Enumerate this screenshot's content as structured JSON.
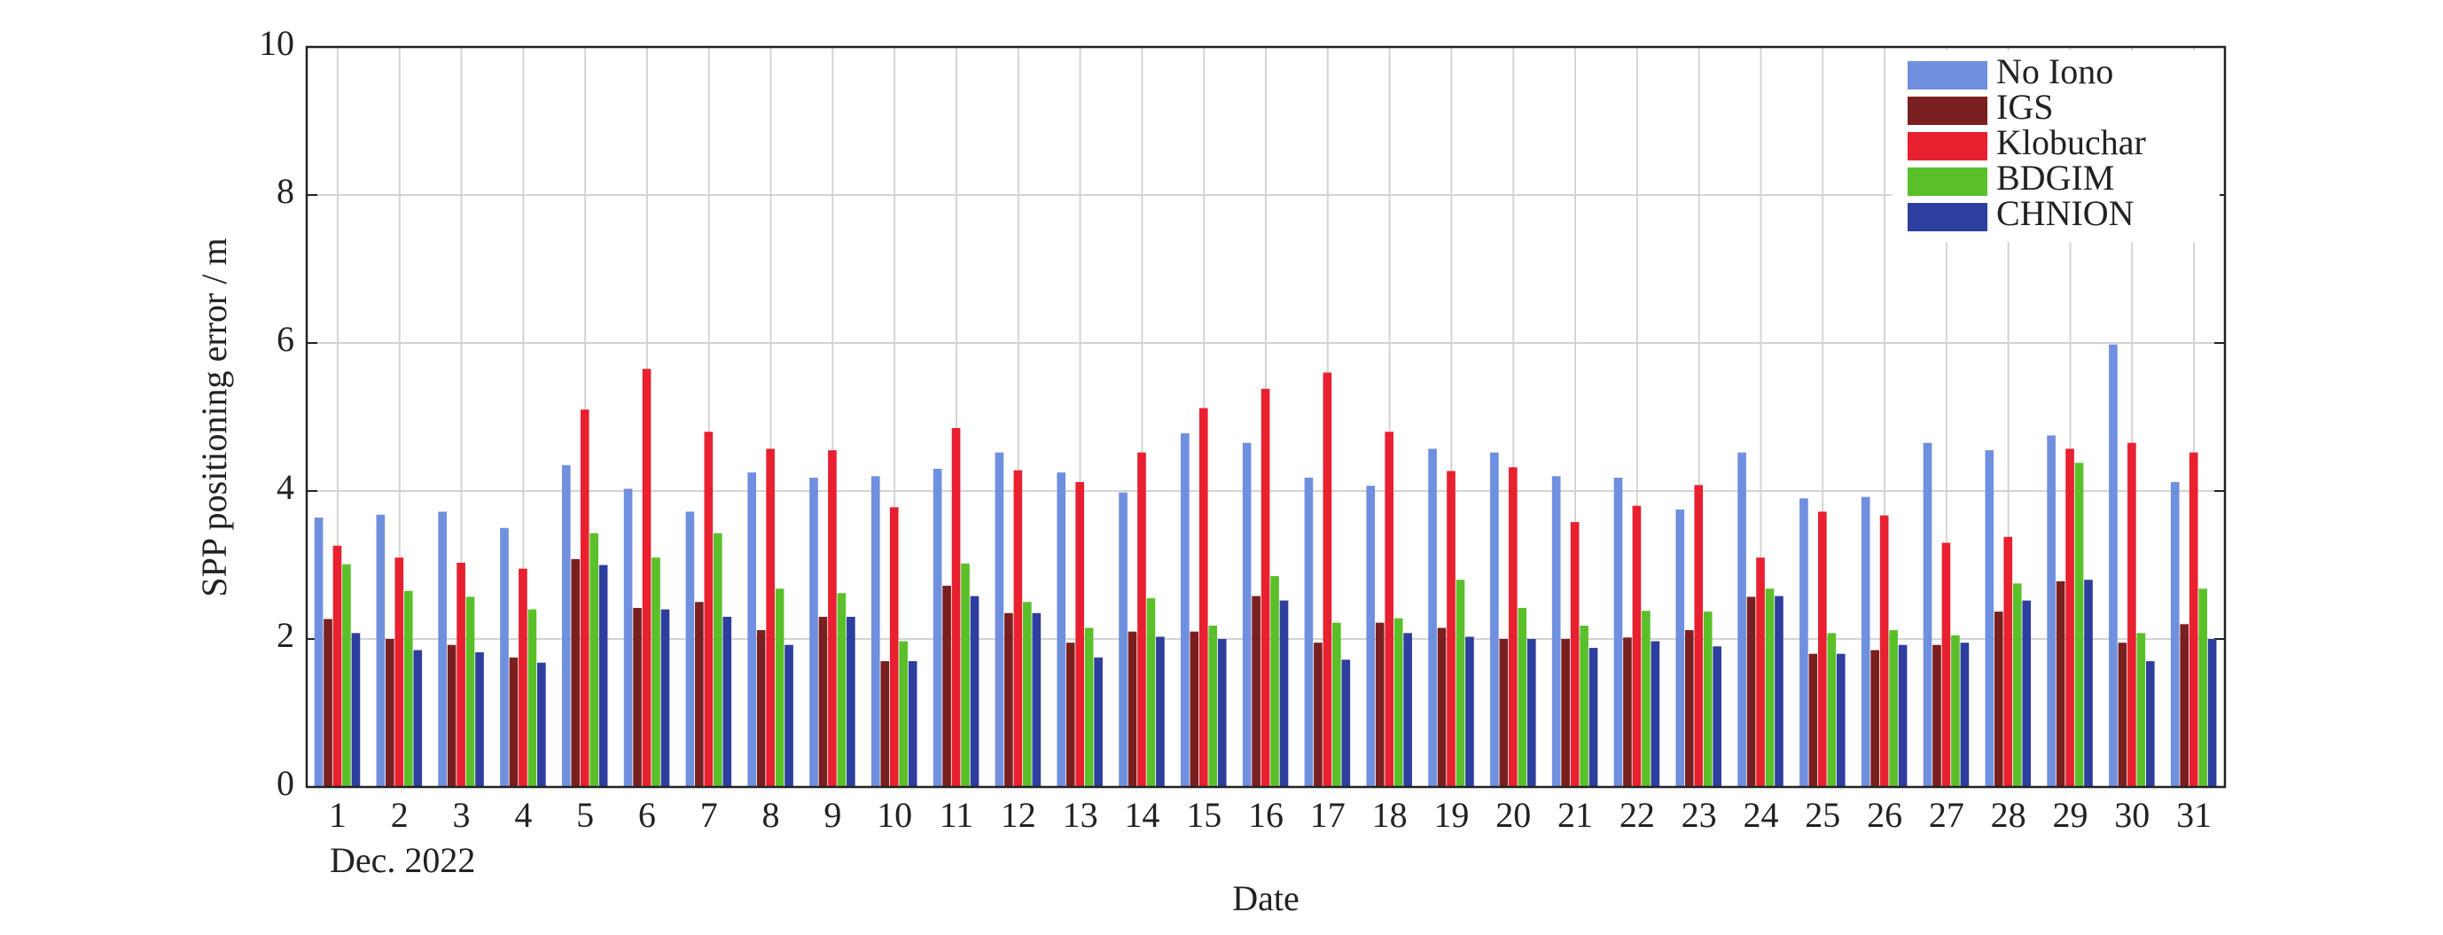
{
  "chart_data": {
    "type": "bar",
    "xlabel": "Date",
    "ylabel": "SPP positioning error / m",
    "annotation": "Dec. 2022",
    "categories": [
      "1",
      "2",
      "3",
      "4",
      "5",
      "6",
      "7",
      "8",
      "9",
      "10",
      "11",
      "12",
      "13",
      "14",
      "15",
      "16",
      "17",
      "18",
      "19",
      "20",
      "21",
      "22",
      "23",
      "24",
      "25",
      "26",
      "27",
      "28",
      "29",
      "30",
      "31"
    ],
    "series": [
      {
        "name": "No Iono",
        "color": "#6f8fdf",
        "values": [
          3.64,
          3.68,
          3.72,
          3.5,
          4.35,
          4.03,
          3.72,
          4.25,
          4.18,
          4.2,
          4.3,
          4.52,
          4.25,
          3.98,
          4.78,
          4.65,
          4.18,
          4.07,
          4.57,
          4.52,
          4.2,
          4.18,
          3.75,
          4.52,
          3.9,
          3.92,
          4.65,
          4.55,
          4.75,
          5.98,
          4.12
        ]
      },
      {
        "name": "IGS",
        "color": "#7a1f1f",
        "values": [
          2.27,
          2.0,
          1.92,
          1.75,
          3.08,
          2.42,
          2.5,
          2.12,
          2.3,
          1.7,
          2.72,
          2.35,
          1.95,
          2.1,
          2.1,
          2.58,
          1.95,
          2.22,
          2.15,
          2.0,
          2.0,
          2.02,
          2.12,
          2.57,
          1.8,
          1.85,
          1.92,
          2.37,
          2.78,
          1.95,
          2.2
        ]
      },
      {
        "name": "Klobuchar",
        "color": "#e8202f",
        "values": [
          3.26,
          3.1,
          3.03,
          2.95,
          5.1,
          5.65,
          4.8,
          4.57,
          4.55,
          3.78,
          4.85,
          4.28,
          4.12,
          4.52,
          5.12,
          5.38,
          5.6,
          4.8,
          4.27,
          4.32,
          3.58,
          3.8,
          4.08,
          3.1,
          3.72,
          3.67,
          3.3,
          3.38,
          4.57,
          4.65,
          4.52
        ]
      },
      {
        "name": "BDGIM",
        "color": "#5ac02a",
        "values": [
          3.01,
          2.65,
          2.57,
          2.4,
          3.43,
          3.1,
          3.43,
          2.68,
          2.62,
          1.97,
          3.02,
          2.5,
          2.15,
          2.55,
          2.18,
          2.85,
          2.22,
          2.28,
          2.8,
          2.42,
          2.18,
          2.38,
          2.37,
          2.68,
          2.08,
          2.12,
          2.05,
          2.75,
          4.38,
          2.08,
          2.68
        ]
      },
      {
        "name": "CHNION",
        "color": "#2e3e9e",
        "values": [
          2.08,
          1.85,
          1.82,
          1.68,
          3.0,
          2.4,
          2.3,
          1.92,
          2.3,
          1.7,
          2.58,
          2.35,
          1.75,
          2.03,
          2.0,
          2.52,
          1.72,
          2.08,
          2.03,
          2.0,
          1.88,
          1.97,
          1.9,
          2.58,
          1.8,
          1.92,
          1.95,
          2.52,
          2.8,
          1.7,
          2.0
        ]
      }
    ],
    "ylim": [
      0,
      10
    ],
    "yticks": [
      0,
      2,
      4,
      6,
      8,
      10
    ],
    "grid": true,
    "legend": "upper right"
  }
}
